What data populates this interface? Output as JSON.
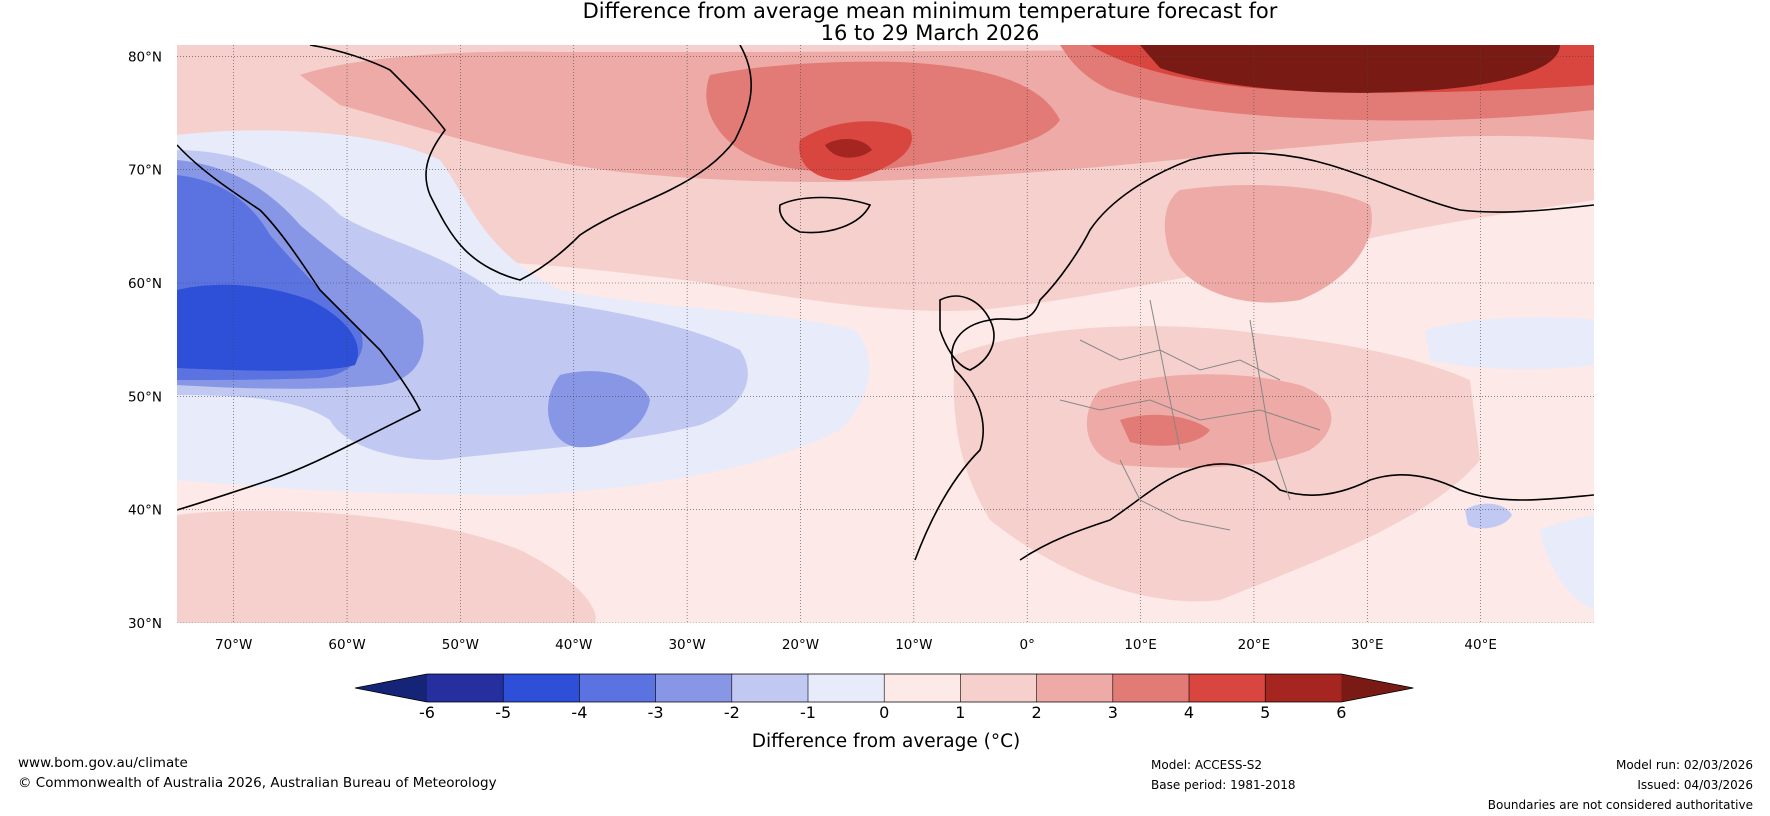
{
  "title": {
    "line1": "Difference from average mean minimum temperature forecast for",
    "line2": "16 to 29 March 2026"
  },
  "map": {
    "lat_labels": [
      "80°N",
      "70°N",
      "60°N",
      "50°N",
      "40°N",
      "30°N"
    ],
    "lon_labels": [
      "70°W",
      "60°W",
      "50°W",
      "40°W",
      "30°W",
      "20°W",
      "10°W",
      "0°",
      "10°E",
      "20°E",
      "30°E",
      "40°E"
    ],
    "lat_range": [
      30,
      81
    ],
    "lon_range": [
      -75,
      50
    ]
  },
  "colorbar": {
    "tick_labels": [
      "-6",
      "-5",
      "-4",
      "-3",
      "-2",
      "-1",
      "0",
      "1",
      "2",
      "3",
      "4",
      "5",
      "6"
    ],
    "colors": [
      "#252f9e",
      "#2e4fd8",
      "#5a73e0",
      "#8797e6",
      "#c1c9f2",
      "#e8ebfa",
      "#fce9e8",
      "#f6d0cd",
      "#eeaaa6",
      "#e27b75",
      "#d9463f",
      "#a52520"
    ],
    "under_color": "#162478",
    "over_color": "#7a1a15",
    "label": "Difference from average (°C)"
  },
  "footer": {
    "url": "www.bom.gov.au/climate",
    "copyright": "© Commonwealth of Australia 2026, Australian Bureau of Meteorology",
    "model": "Model: ACCESS-S2",
    "base_period": "Base period: 1981-2018",
    "model_run": "Model run: 02/03/2026",
    "issued": "Issued: 04/03/2026",
    "boundaries_note": "Boundaries are not considered authoritative"
  }
}
